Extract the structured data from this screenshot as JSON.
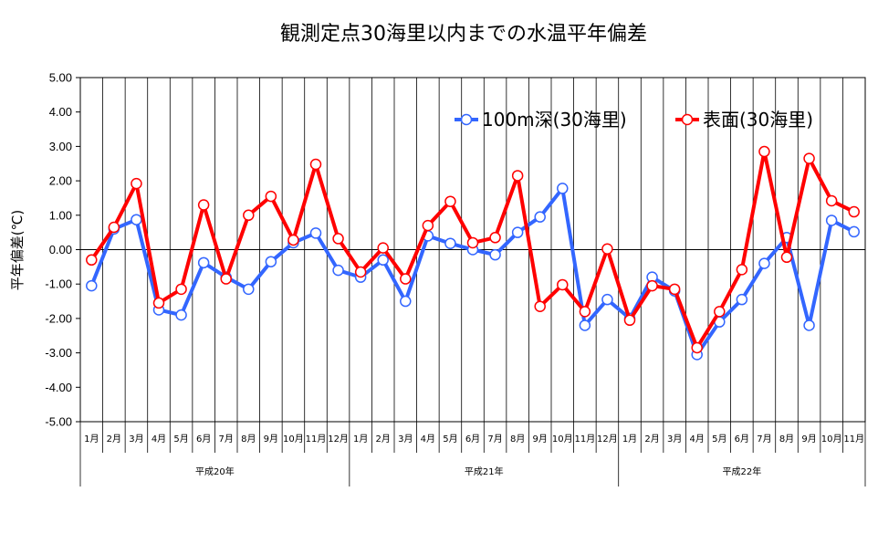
{
  "chart_data": {
    "type": "line",
    "title": "観測定点30海里以内までの水温平年偏差",
    "ylabel": "平年偏差(℃)",
    "ylim": [
      -5,
      5
    ],
    "yticks": [
      "5.00",
      "4.00",
      "3.00",
      "2.00",
      "1.00",
      "0.00",
      "-1.00",
      "-2.00",
      "-3.00",
      "-4.00",
      "-5.00"
    ],
    "categories": [
      "1月",
      "2月",
      "3月",
      "4月",
      "5月",
      "6月",
      "7月",
      "8月",
      "9月",
      "10月",
      "11月",
      "12月",
      "1月",
      "2月",
      "3月",
      "4月",
      "5月",
      "6月",
      "7月",
      "8月",
      "9月",
      "10月",
      "11月",
      "12月",
      "1月",
      "2月",
      "3月",
      "4月",
      "5月",
      "6月",
      "7月",
      "8月",
      "9月",
      "10月",
      "11月"
    ],
    "groups": [
      {
        "label": "平成20年",
        "start": 0,
        "count": 12
      },
      {
        "label": "平成21年",
        "start": 12,
        "count": 12
      },
      {
        "label": "平成22年",
        "start": 24,
        "count": 11
      }
    ],
    "legend_position": "top-right",
    "grid": "vertical",
    "series": [
      {
        "name": "100m深(30海里)",
        "color": "#3366ff",
        "values": [
          -1.05,
          0.6,
          0.87,
          -1.75,
          -1.9,
          -0.38,
          -0.8,
          -1.15,
          -0.35,
          0.2,
          0.48,
          -0.6,
          -0.8,
          -0.3,
          -1.5,
          0.4,
          0.18,
          0.0,
          -0.15,
          0.5,
          0.95,
          1.78,
          -2.2,
          -1.45,
          -2.0,
          -0.8,
          -1.2,
          -3.05,
          -2.1,
          -1.45,
          -0.4,
          0.35,
          -2.2,
          0.85,
          0.52
        ]
      },
      {
        "name": "表面(30海里)",
        "color": "#ff0000",
        "values": [
          -0.3,
          0.65,
          1.92,
          -1.55,
          -1.15,
          1.3,
          -0.85,
          1.0,
          1.55,
          0.28,
          2.48,
          0.32,
          -0.65,
          0.05,
          -0.85,
          0.7,
          1.4,
          0.2,
          0.35,
          2.15,
          -1.65,
          -1.02,
          -1.8,
          0.02,
          -2.05,
          -1.05,
          -1.15,
          -2.85,
          -1.8,
          -0.58,
          2.85,
          -0.22,
          2.65,
          1.42,
          1.1
        ]
      }
    ]
  }
}
